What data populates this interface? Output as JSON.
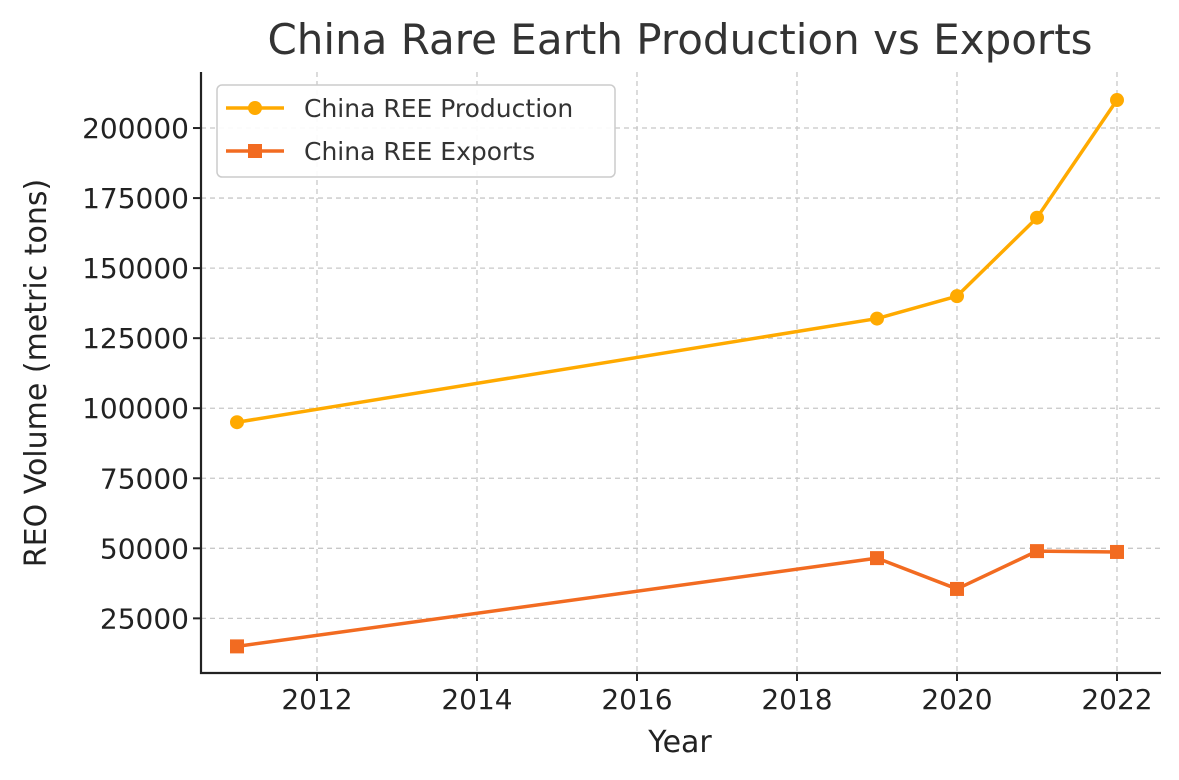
{
  "chart_data": {
    "type": "line",
    "title": "China Rare Earth Production vs Exports",
    "xlabel": "Year",
    "ylabel": "REO Volume (metric tons)",
    "xlim": [
      2010.55,
      2022.55
    ],
    "ylim": [
      5500,
      220000
    ],
    "xticks": [
      2012,
      2014,
      2016,
      2018,
      2020,
      2022
    ],
    "yticks": [
      25000,
      50000,
      75000,
      100000,
      125000,
      150000,
      175000,
      200000
    ],
    "grid": true,
    "legend_position": "top-left",
    "series": [
      {
        "name": "China REE Production",
        "color": "#FFAA00",
        "marker": "circle",
        "x": [
          2011,
          2019,
          2020,
          2021,
          2022
        ],
        "y": [
          95000,
          132000,
          140000,
          168000,
          210000
        ]
      },
      {
        "name": "China REE Exports",
        "color": "#F26B21",
        "marker": "square",
        "x": [
          2011,
          2019,
          2020,
          2021,
          2022
        ],
        "y": [
          15000,
          46500,
          35500,
          49000,
          48700
        ]
      }
    ]
  }
}
